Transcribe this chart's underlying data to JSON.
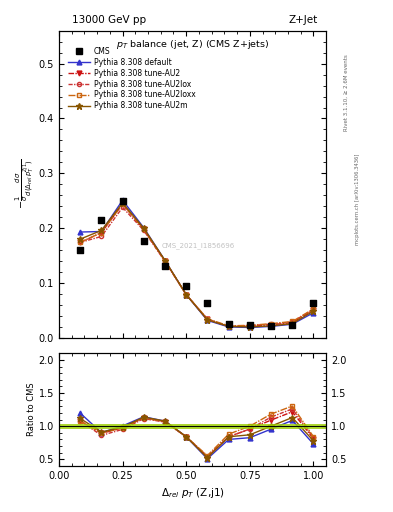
{
  "title_top_left": "13000 GeV pp",
  "title_top_right": "Z+Jet",
  "plot_title": "p_{T} balance (jet, Z) (CMS Z+jets)",
  "xlabel": "Δ_{rel} p_{T} (Z,j1)",
  "ylabel_main": "-1/σ dσ/d(Δ_{rel} p_{T}^{Zj1})",
  "ylabel_ratio": "Ratio to CMS",
  "right_label_top": "Rivet 3.1.10, ≥ 2.6M events",
  "right_label_bot": "mcplots.cern.ch [arXiv:1306.3436]",
  "watermark": "CMS_2021_I1856696",
  "x_cms": [
    0.083,
    0.167,
    0.25,
    0.333,
    0.417,
    0.5,
    0.583,
    0.667,
    0.75,
    0.833,
    0.917,
    1.0
  ],
  "y_cms": [
    0.161,
    0.215,
    0.25,
    0.176,
    0.131,
    0.094,
    0.063,
    0.025,
    0.023,
    0.022,
    0.023,
    0.063
  ],
  "x_mc": [
    0.083,
    0.167,
    0.25,
    0.333,
    0.417,
    0.5,
    0.583,
    0.667,
    0.75,
    0.833,
    0.917,
    1.0
  ],
  "y_default": [
    0.193,
    0.194,
    0.251,
    0.201,
    0.141,
    0.079,
    0.032,
    0.02,
    0.019,
    0.021,
    0.025,
    0.046
  ],
  "y_au2": [
    0.174,
    0.192,
    0.244,
    0.198,
    0.14,
    0.079,
    0.034,
    0.021,
    0.022,
    0.024,
    0.028,
    0.051
  ],
  "y_au2lox": [
    0.174,
    0.185,
    0.238,
    0.196,
    0.139,
    0.079,
    0.034,
    0.021,
    0.022,
    0.025,
    0.029,
    0.052
  ],
  "y_au2loxx": [
    0.174,
    0.192,
    0.244,
    0.198,
    0.14,
    0.079,
    0.035,
    0.022,
    0.023,
    0.026,
    0.03,
    0.053
  ],
  "y_au2m": [
    0.18,
    0.196,
    0.246,
    0.2,
    0.141,
    0.079,
    0.033,
    0.021,
    0.02,
    0.022,
    0.026,
    0.049
  ],
  "color_default": "#3333cc",
  "color_au2": "#cc1111",
  "color_au2lox": "#cc3333",
  "color_au2loxx": "#cc6611",
  "color_au2m": "#885500",
  "ylim_main": [
    0.0,
    0.56
  ],
  "ylim_ratio": [
    0.4,
    2.1
  ],
  "xlim": [
    0.0,
    1.05
  ],
  "legend_labels": [
    "CMS",
    "Pythia 8.308 default",
    "Pythia 8.308 tune-AU2",
    "Pythia 8.308 tune-AU2lox",
    "Pythia 8.308 tune-AU2loxx",
    "Pythia 8.308 tune-AU2m"
  ]
}
